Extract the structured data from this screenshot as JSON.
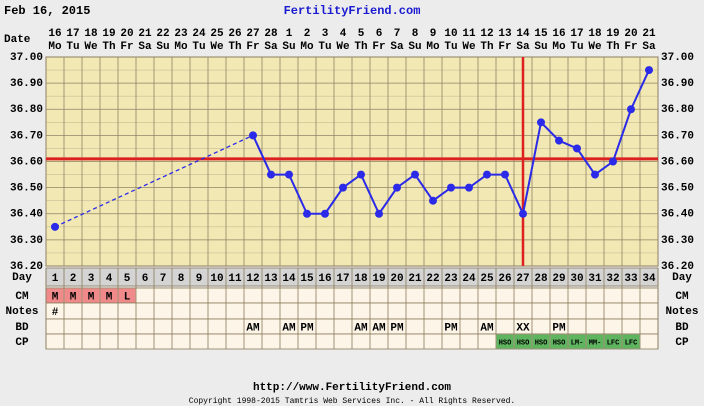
{
  "header": {
    "date": "Feb 16, 2015",
    "site": "FertilityFriend.com"
  },
  "chart_data": {
    "type": "line",
    "row_labels": {
      "date": "Date",
      "day": "Day",
      "cm": "CM",
      "notes": "Notes",
      "bd": "BD",
      "cp": "CP"
    },
    "dates": [
      16,
      17,
      18,
      19,
      20,
      21,
      22,
      23,
      24,
      25,
      26,
      27,
      28,
      1,
      2,
      3,
      4,
      5,
      6,
      7,
      8,
      9,
      10,
      11,
      12,
      13,
      14,
      15,
      16,
      17,
      18,
      19,
      20,
      21
    ],
    "weekdays": [
      "Mo",
      "Tu",
      "We",
      "Th",
      "Fr",
      "Sa",
      "Su",
      "Mo",
      "Tu",
      "We",
      "Th",
      "Fr",
      "Sa",
      "Su",
      "Mo",
      "Tu",
      "We",
      "Th",
      "Fr",
      "Sa",
      "Su",
      "Mo",
      "Tu",
      "We",
      "Th",
      "Fr",
      "Sa",
      "Su",
      "Mo",
      "Tu",
      "We",
      "Th",
      "Fr",
      "Sa"
    ],
    "days": [
      1,
      2,
      3,
      4,
      5,
      6,
      7,
      8,
      9,
      10,
      11,
      12,
      13,
      14,
      15,
      16,
      17,
      18,
      19,
      20,
      21,
      22,
      23,
      24,
      25,
      26,
      27,
      28,
      29,
      30,
      31,
      32,
      33,
      34
    ],
    "values": [
      36.35,
      null,
      null,
      null,
      null,
      null,
      null,
      null,
      null,
      null,
      null,
      36.7,
      36.55,
      36.55,
      36.4,
      36.4,
      36.5,
      36.55,
      36.4,
      36.5,
      36.55,
      36.45,
      36.5,
      36.5,
      36.55,
      36.55,
      36.4,
      36.75,
      36.68,
      36.65,
      36.55,
      36.6,
      36.8,
      36.95
    ],
    "color": "#2a2ae8",
    "ylim": [
      36.2,
      37.0
    ],
    "yticks": [
      {
        "value": 36.2,
        "label": "36.20"
      },
      {
        "value": 36.3,
        "label": "36.30"
      },
      {
        "value": 36.4,
        "label": "36.40"
      },
      {
        "value": 36.5,
        "label": "36.50"
      },
      {
        "value": 36.6,
        "label": "36.60"
      },
      {
        "value": 36.7,
        "label": "36.70"
      },
      {
        "value": 36.8,
        "label": "36.80"
      },
      {
        "value": 36.9,
        "label": "36.90"
      },
      {
        "value": 37.0,
        "label": "37.00"
      }
    ],
    "grid": true,
    "coverline": 36.61,
    "ovulation_day": 27,
    "marker_color": "#dd2020",
    "cm": [
      "M",
      "M",
      "M",
      "M",
      "L",
      null,
      null,
      null,
      null,
      null,
      null,
      null,
      null,
      null,
      null,
      null,
      null,
      null,
      null,
      null,
      null,
      null,
      null,
      null,
      null,
      null,
      null,
      null,
      null,
      null,
      null,
      null,
      null,
      null
    ],
    "cm_color": "#f08a8a",
    "notes": [
      "#",
      null,
      null,
      null,
      null,
      null,
      null,
      null,
      null,
      null,
      null,
      null,
      null,
      null,
      null,
      null,
      null,
      null,
      null,
      null,
      null,
      null,
      null,
      null,
      null,
      null,
      null,
      null,
      null,
      null,
      null,
      null,
      null,
      null
    ],
    "bd": [
      null,
      null,
      null,
      null,
      null,
      null,
      null,
      null,
      null,
      null,
      null,
      "AM",
      null,
      "AM",
      "PM",
      null,
      null,
      "AM",
      "AM",
      "PM",
      null,
      null,
      "PM",
      null,
      "AM",
      null,
      "XX",
      null,
      "PM",
      null,
      null,
      null,
      null,
      null
    ],
    "cp": [
      null,
      null,
      null,
      null,
      null,
      null,
      null,
      null,
      null,
      null,
      null,
      null,
      null,
      null,
      null,
      null,
      null,
      null,
      null,
      null,
      null,
      null,
      null,
      null,
      null,
      "HSO",
      "HSO",
      "HSO",
      "HSO",
      "LM-",
      "MM-",
      "LFC",
      "LFC",
      null
    ],
    "cp_color": "#5fb45f"
  },
  "footer": {
    "url": "http://www.FertilityFriend.com",
    "copyright": "Copyright 1998-2015 Tamtris Web Services Inc. - All Rights Reserved."
  }
}
